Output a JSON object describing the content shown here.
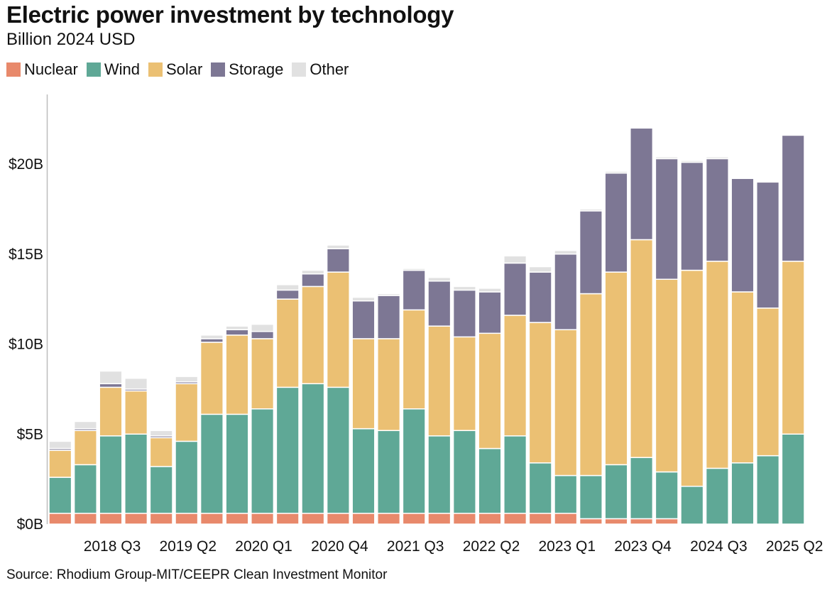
{
  "header": {
    "title": "Electric power investment by technology",
    "subtitle": "Billion 2024 USD"
  },
  "source": "Source: Rhodium Group-MIT/CEEPR Clean Investment Monitor",
  "colors": {
    "nuclear": "#e8896b",
    "wind": "#5fa896",
    "solar": "#ebc073",
    "storage": "#7d7794",
    "other": "#e1e1e1"
  },
  "chart_data": {
    "type": "bar",
    "stacked": true,
    "unit": "Billion 2024 USD",
    "ylim": [
      0,
      23.5
    ],
    "y_ticks": [
      0,
      5,
      10,
      15,
      20
    ],
    "y_tick_labels": [
      "$0B",
      "$5B",
      "$10B",
      "$15B",
      "$20B"
    ],
    "x_tick_labels": [
      "2018 Q3",
      "2019 Q2",
      "2020 Q1",
      "2020 Q4",
      "2021 Q3",
      "2022 Q2",
      "2023 Q1",
      "2023 Q4",
      "2024 Q3",
      "2025 Q2"
    ],
    "x_tick_indices": [
      2,
      5,
      8,
      11,
      14,
      17,
      20,
      23,
      26,
      29
    ],
    "categories": [
      "2018 Q1",
      "2018 Q2",
      "2018 Q3",
      "2018 Q4",
      "2019 Q1",
      "2019 Q2",
      "2019 Q3",
      "2019 Q4",
      "2020 Q1",
      "2020 Q2",
      "2020 Q3",
      "2020 Q4",
      "2021 Q1",
      "2021 Q2",
      "2021 Q3",
      "2021 Q4",
      "2022 Q1",
      "2022 Q2",
      "2022 Q3",
      "2022 Q4",
      "2023 Q1",
      "2023 Q2",
      "2023 Q3",
      "2023 Q4",
      "2024 Q1",
      "2024 Q2",
      "2024 Q3",
      "2024 Q4",
      "2025 Q1",
      "2025 Q2"
    ],
    "grid": false,
    "legend_position": "top-left",
    "series": [
      {
        "name": "Nuclear",
        "key": "nuclear",
        "values": [
          0.6,
          0.6,
          0.6,
          0.6,
          0.6,
          0.6,
          0.6,
          0.6,
          0.6,
          0.6,
          0.6,
          0.6,
          0.6,
          0.6,
          0.6,
          0.6,
          0.6,
          0.6,
          0.6,
          0.6,
          0.6,
          0.3,
          0.3,
          0.3,
          0.3,
          0,
          0,
          0,
          0,
          0
        ]
      },
      {
        "name": "Wind",
        "key": "wind",
        "values": [
          2.0,
          2.7,
          4.3,
          4.4,
          2.6,
          4.0,
          5.5,
          5.5,
          5.8,
          7.0,
          7.2,
          7.0,
          4.7,
          4.6,
          5.8,
          4.3,
          4.6,
          3.6,
          4.3,
          2.8,
          2.1,
          2.4,
          3.0,
          3.4,
          2.6,
          2.1,
          3.1,
          3.4,
          3.8,
          5.0
        ]
      },
      {
        "name": "Solar",
        "key": "solar",
        "values": [
          1.5,
          1.9,
          2.7,
          2.4,
          1.6,
          3.2,
          4.0,
          4.4,
          3.9,
          4.9,
          5.4,
          6.4,
          5.0,
          5.1,
          5.5,
          6.1,
          5.2,
          6.4,
          6.7,
          7.8,
          8.1,
          10.1,
          10.7,
          12.1,
          10.7,
          12.0,
          11.5,
          9.5,
          8.2,
          9.6
        ]
      },
      {
        "name": "Storage",
        "key": "storage",
        "values": [
          0.1,
          0.1,
          0.2,
          0.1,
          0.1,
          0.1,
          0.2,
          0.3,
          0.4,
          0.5,
          0.7,
          1.3,
          2.1,
          2.4,
          2.2,
          2.5,
          2.6,
          2.3,
          2.9,
          2.8,
          4.2,
          4.6,
          5.5,
          6.2,
          6.7,
          6.0,
          5.7,
          6.3,
          7.0,
          7.0
        ]
      },
      {
        "name": "Other",
        "key": "other",
        "values": [
          0.4,
          0.4,
          0.7,
          0.6,
          0.3,
          0.3,
          0.2,
          0.2,
          0.4,
          0.3,
          0.2,
          0.2,
          0.2,
          0.1,
          0.1,
          0.2,
          0.2,
          0.2,
          0.4,
          0.3,
          0.2,
          0.1,
          0.1,
          0.0,
          0.1,
          0.1,
          0.1,
          0.0,
          0.0,
          0.0
        ]
      }
    ]
  }
}
